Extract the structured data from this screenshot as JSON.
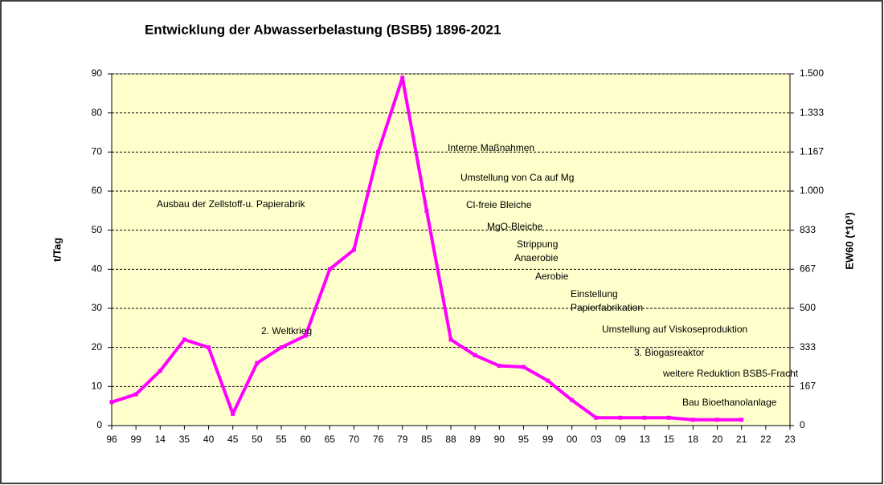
{
  "chart_data": {
    "type": "line",
    "title": "Entwicklung der Abwasserbelastung (BSB5) 1896-2021",
    "y_label": "t/Tag",
    "y2_label": "EW60  (*10³)",
    "categories": [
      "96",
      "99",
      "14",
      "35",
      "40",
      "45",
      "50",
      "55",
      "60",
      "65",
      "70",
      "76",
      "79",
      "85",
      "88",
      "89",
      "90",
      "95",
      "99",
      "00",
      "03",
      "09",
      "13",
      "15",
      "18",
      "20",
      "21",
      "22",
      "23"
    ],
    "series": [
      {
        "name": "BSB5",
        "color": "#ff00ff",
        "values": [
          6,
          8,
          14,
          22,
          20,
          3,
          16,
          20,
          23,
          40,
          45,
          70,
          89,
          55,
          22,
          18,
          15.3,
          15,
          11.5,
          6.5,
          2,
          2,
          2,
          2,
          1.5,
          1.5,
          1.5,
          null,
          null
        ]
      }
    ],
    "ylim": [
      0,
      90
    ],
    "yticks": [
      0,
      10,
      20,
      30,
      40,
      50,
      60,
      70,
      80,
      90
    ],
    "y2lim": [
      0,
      1500
    ],
    "y2ticks": [
      {
        "value": 0,
        "label": "0"
      },
      {
        "value": 167,
        "label": "167"
      },
      {
        "value": 333,
        "label": "333"
      },
      {
        "value": 500,
        "label": "500"
      },
      {
        "value": 667,
        "label": "667"
      },
      {
        "value": 833,
        "label": "833"
      },
      {
        "value": 1000,
        "label": "1.000"
      },
      {
        "value": 1167,
        "label": "1.167"
      },
      {
        "value": 1333,
        "label": "1.333"
      },
      {
        "value": 1500,
        "label": "1.500"
      }
    ],
    "grid": true,
    "annotations": [
      "Ausbau der Zellstoff-u. Papierabrik",
      "2. Weltkrieg",
      "Interne Maßnahmen",
      "Umstellung von Ca auf Mg",
      "Cl-freie Bleiche",
      "MgO-Bleiche",
      "Strippung",
      "Anaerobie",
      "Aerobie",
      "Einstellung",
      "Papierfabrikation",
      "Umstellung auf Viskoseproduktion",
      "3. Biogasreaktor",
      "weitere Reduktion BSB5-Fracht",
      "Bau Bioethanolanlage"
    ]
  }
}
